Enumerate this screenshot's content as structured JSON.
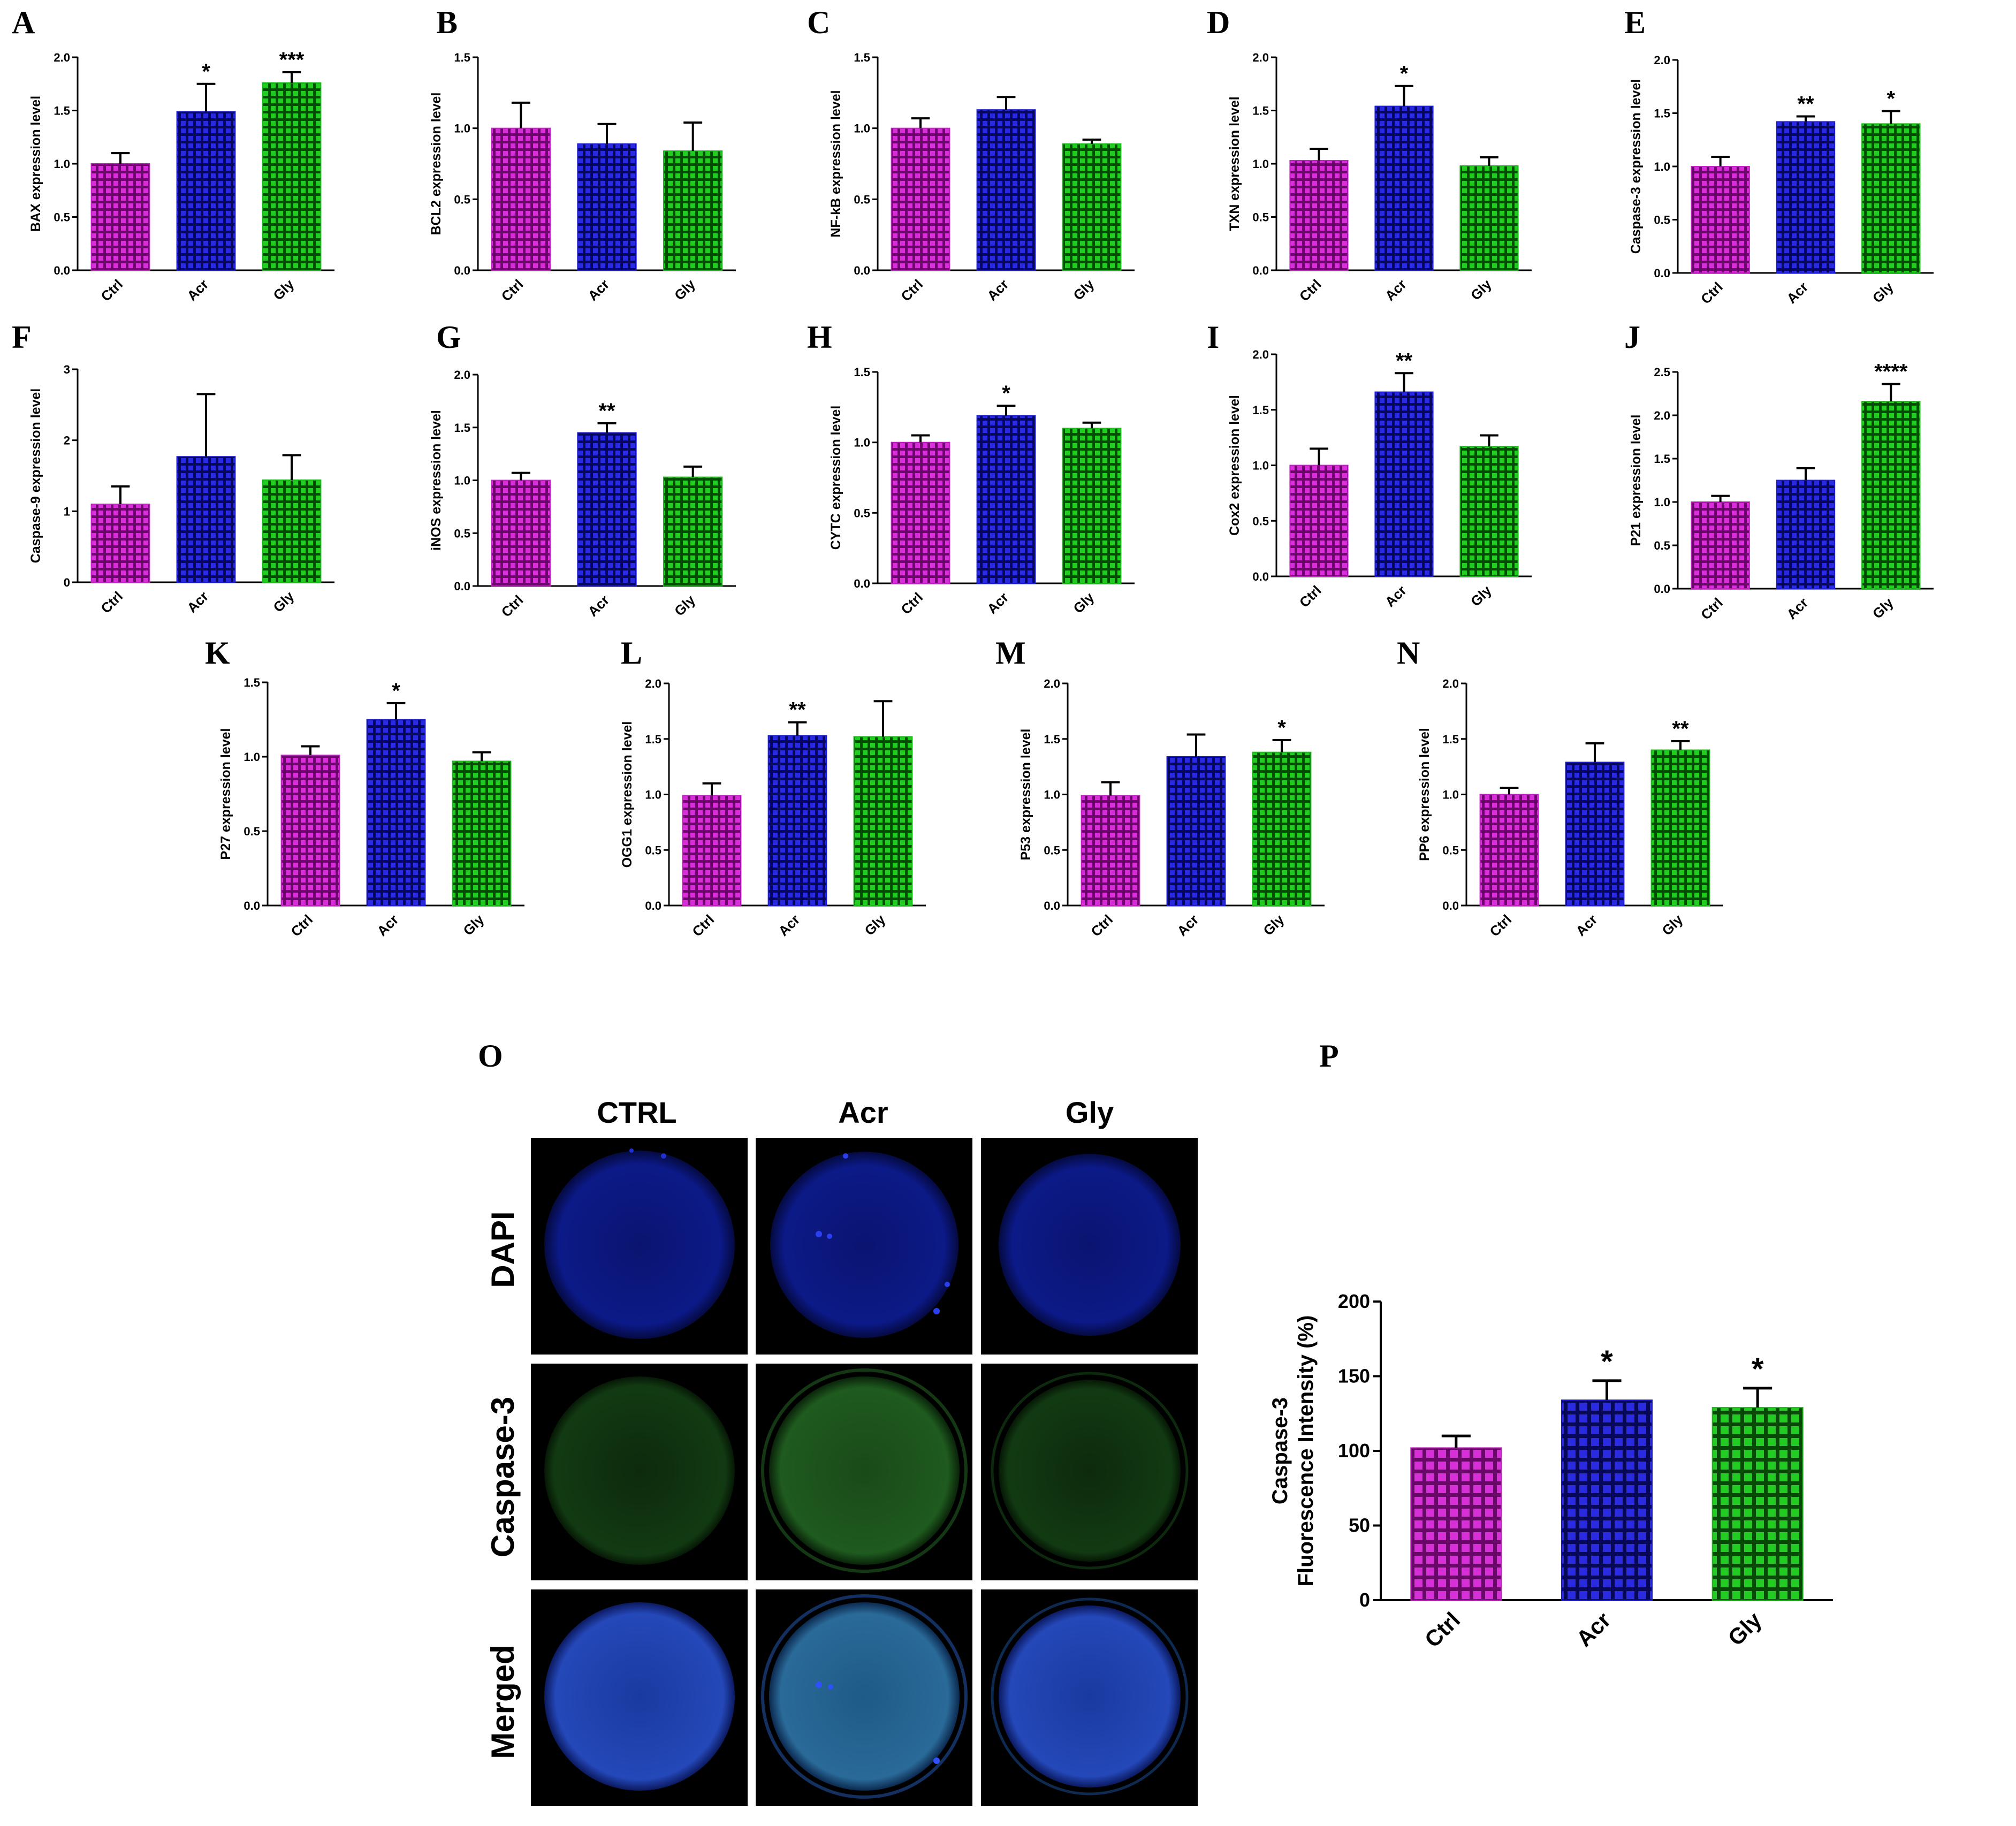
{
  "colors": {
    "Ctrl": "#c020c0",
    "Acr": "#1c1cd0",
    "Gly": "#18b818",
    "bar_fill_dark_Ctrl": "#7a0a7a",
    "bar_fill_dark_Acr": "#0a0a6a",
    "bar_fill_dark_Gly": "#0a5a0a"
  },
  "chart_data": [
    {
      "id": "A",
      "type": "bar",
      "ylabel": "BAX expression level",
      "categories": [
        "Ctrl",
        "Acr",
        "Gly"
      ],
      "values": [
        1.0,
        1.49,
        1.76
      ],
      "errors": [
        0.1,
        0.26,
        0.1
      ],
      "ylim": [
        0,
        2.0
      ],
      "ticks": [
        "0.0",
        "0.5",
        "1.0",
        "1.5",
        "2.0"
      ],
      "sig": [
        "",
        "*",
        "***"
      ]
    },
    {
      "id": "B",
      "type": "bar",
      "ylabel": "BCL2 expression level",
      "categories": [
        "Ctrl",
        "Acr",
        "Gly"
      ],
      "values": [
        1.0,
        0.89,
        0.84
      ],
      "errors": [
        0.18,
        0.14,
        0.2
      ],
      "ylim": [
        0,
        1.5
      ],
      "ticks": [
        "0.0",
        "0.5",
        "1.0",
        "1.5"
      ],
      "sig": [
        "",
        "",
        ""
      ]
    },
    {
      "id": "C",
      "type": "bar",
      "ylabel": "NF-kB expression level",
      "categories": [
        "Ctrl",
        "Acr",
        "Gly"
      ],
      "values": [
        1.0,
        1.13,
        0.89
      ],
      "errors": [
        0.07,
        0.09,
        0.03
      ],
      "ylim": [
        0,
        1.5
      ],
      "ticks": [
        "0.0",
        "0.5",
        "1.0",
        "1.5"
      ],
      "sig": [
        "",
        "",
        ""
      ]
    },
    {
      "id": "D",
      "type": "bar",
      "ylabel": "TXN expression level",
      "categories": [
        "Ctrl",
        "Acr",
        "Gly"
      ],
      "values": [
        1.03,
        1.54,
        0.98
      ],
      "errors": [
        0.11,
        0.19,
        0.08
      ],
      "ylim": [
        0,
        2.0
      ],
      "ticks": [
        "0.0",
        "0.5",
        "1.0",
        "1.5",
        "2.0"
      ],
      "sig": [
        "",
        "*",
        ""
      ]
    },
    {
      "id": "E",
      "type": "bar",
      "ylabel": "Caspase-3 expression level",
      "categories": [
        "Ctrl",
        "Acr",
        "Gly"
      ],
      "values": [
        1.0,
        1.42,
        1.4
      ],
      "errors": [
        0.09,
        0.05,
        0.12
      ],
      "ylim": [
        0,
        2.0
      ],
      "ticks": [
        "0.0",
        "0.5",
        "1.0",
        "1.5",
        "2.0"
      ],
      "sig": [
        "",
        "**",
        "*"
      ]
    },
    {
      "id": "F",
      "type": "bar",
      "ylabel": "Caspase-9 expression level",
      "categories": [
        "Ctrl",
        "Acr",
        "Gly"
      ],
      "values": [
        1.1,
        1.77,
        1.44
      ],
      "errors": [
        0.25,
        0.88,
        0.35
      ],
      "ylim": [
        0,
        3
      ],
      "ticks": [
        "0",
        "1",
        "2",
        "3"
      ],
      "sig": [
        "",
        "",
        ""
      ]
    },
    {
      "id": "G",
      "type": "bar",
      "ylabel": "iNOS expression level",
      "categories": [
        "Ctrl",
        "Acr",
        "Gly"
      ],
      "values": [
        1.0,
        1.45,
        1.03
      ],
      "errors": [
        0.07,
        0.09,
        0.1
      ],
      "ylim": [
        0,
        2.0
      ],
      "ticks": [
        "0.0",
        "0.5",
        "1.0",
        "1.5",
        "2.0"
      ],
      "sig": [
        "",
        "**",
        ""
      ]
    },
    {
      "id": "H",
      "type": "bar",
      "ylabel": "CYTC expression level",
      "categories": [
        "Ctrl",
        "Acr",
        "Gly"
      ],
      "values": [
        1.0,
        1.19,
        1.1
      ],
      "errors": [
        0.05,
        0.07,
        0.04
      ],
      "ylim": [
        0,
        1.5
      ],
      "ticks": [
        "0.0",
        "0.5",
        "1.0",
        "1.5"
      ],
      "sig": [
        "",
        "*",
        ""
      ]
    },
    {
      "id": "I",
      "type": "bar",
      "ylabel": "Cox2 expression level",
      "categories": [
        "Ctrl",
        "Acr",
        "Gly"
      ],
      "values": [
        1.0,
        1.66,
        1.17
      ],
      "errors": [
        0.15,
        0.17,
        0.1
      ],
      "ylim": [
        0,
        2.0
      ],
      "ticks": [
        "0.0",
        "0.5",
        "1.0",
        "1.5",
        "2.0"
      ],
      "sig": [
        "",
        "**",
        ""
      ]
    },
    {
      "id": "J",
      "type": "bar",
      "ylabel": "P21 expression level",
      "categories": [
        "Ctrl",
        "Acr",
        "Gly"
      ],
      "values": [
        1.0,
        1.25,
        2.16
      ],
      "errors": [
        0.07,
        0.14,
        0.2
      ],
      "ylim": [
        0,
        2.5
      ],
      "ticks": [
        "0.0",
        "0.5",
        "1.0",
        "1.5",
        "2.0",
        "2.5"
      ],
      "sig": [
        "",
        "",
        "****"
      ]
    },
    {
      "id": "K",
      "type": "bar",
      "ylabel": "P27 expression level",
      "categories": [
        "Ctrl",
        "Acr",
        "Gly"
      ],
      "values": [
        1.01,
        1.25,
        0.97
      ],
      "errors": [
        0.06,
        0.11,
        0.06
      ],
      "ylim": [
        0,
        1.5
      ],
      "ticks": [
        "0.0",
        "0.5",
        "1.0",
        "1.5"
      ],
      "sig": [
        "",
        "*",
        ""
      ]
    },
    {
      "id": "L",
      "type": "bar",
      "ylabel": "OGG1 expression level",
      "categories": [
        "Ctrl",
        "Acr",
        "Gly"
      ],
      "values": [
        0.99,
        1.53,
        1.52
      ],
      "errors": [
        0.11,
        0.12,
        0.32
      ],
      "ylim": [
        0,
        2.0
      ],
      "ticks": [
        "0.0",
        "0.5",
        "1.0",
        "1.5",
        "2.0"
      ],
      "sig": [
        "",
        "**",
        ""
      ]
    },
    {
      "id": "M",
      "type": "bar",
      "ylabel": "P53 expression level",
      "categories": [
        "Ctrl",
        "Acr",
        "Gly"
      ],
      "values": [
        0.99,
        1.34,
        1.38
      ],
      "errors": [
        0.12,
        0.2,
        0.11
      ],
      "ylim": [
        0,
        2.0
      ],
      "ticks": [
        "0.0",
        "0.5",
        "1.0",
        "1.5",
        "2.0"
      ],
      "sig": [
        "",
        "",
        "*"
      ]
    },
    {
      "id": "N",
      "type": "bar",
      "ylabel": "PP6 expression level",
      "categories": [
        "Ctrl",
        "Acr",
        "Gly"
      ],
      "values": [
        1.0,
        1.29,
        1.4
      ],
      "errors": [
        0.06,
        0.17,
        0.08
      ],
      "ylim": [
        0,
        2.0
      ],
      "ticks": [
        "0.0",
        "0.5",
        "1.0",
        "1.5",
        "2.0"
      ],
      "sig": [
        "",
        "",
        "**"
      ]
    },
    {
      "id": "P",
      "type": "bar",
      "ylabel": "Caspase-3 Fluorescence Intensity (%)",
      "ylabel_lines": [
        "Caspase-3",
        "Fluorescence Intensity (%)"
      ],
      "categories": [
        "Ctrl",
        "Acr",
        "Gly"
      ],
      "values": [
        102,
        134,
        129
      ],
      "errors": [
        8,
        13,
        13
      ],
      "ylim": [
        0,
        200
      ],
      "ticks": [
        "0",
        "50",
        "100",
        "150",
        "200"
      ],
      "sig": [
        "",
        "*",
        "*"
      ]
    }
  ],
  "microscopy": {
    "panel_letter": "O",
    "columns": [
      "CTRL",
      "Acr",
      "Gly"
    ],
    "rows": [
      "DAPI",
      "Caspase-3",
      "Merged"
    ]
  }
}
